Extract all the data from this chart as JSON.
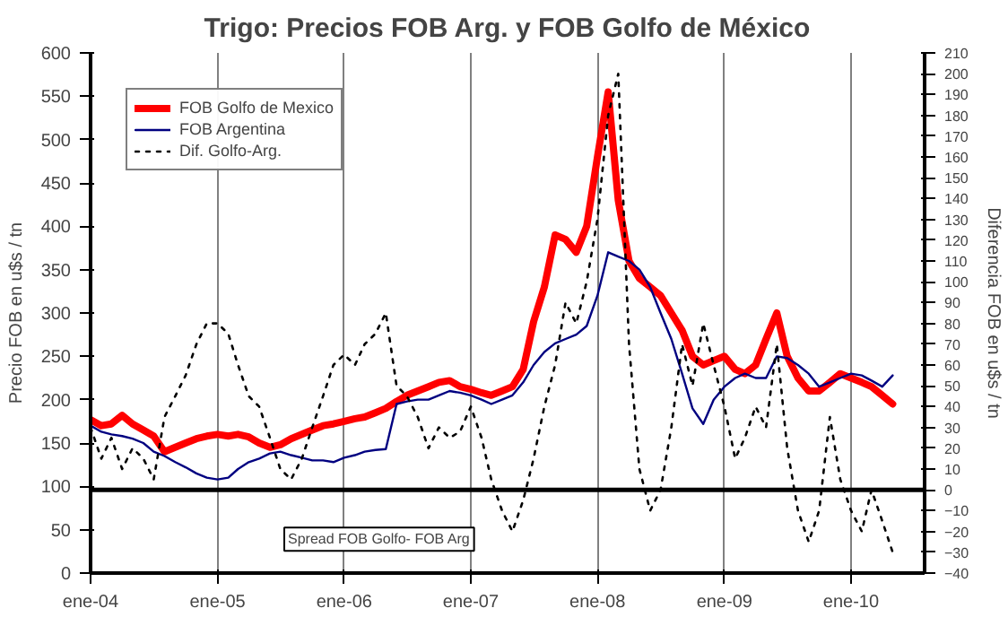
{
  "chart_data": {
    "type": "line",
    "title": "Trigo: Precios FOB Arg. y FOB Golfo de México",
    "ylabel": "Precio FOB en u$s / tn",
    "y2label": "Diferencia FOB en u$s / tn",
    "x": [
      "2004-01",
      "2004-02",
      "2004-03",
      "2004-04",
      "2004-05",
      "2004-06",
      "2004-07",
      "2004-08",
      "2004-09",
      "2004-10",
      "2004-11",
      "2004-12",
      "2005-01",
      "2005-02",
      "2005-03",
      "2005-04",
      "2005-05",
      "2005-06",
      "2005-07",
      "2005-08",
      "2005-09",
      "2005-10",
      "2005-11",
      "2005-12",
      "2006-01",
      "2006-02",
      "2006-03",
      "2006-04",
      "2006-05",
      "2006-06",
      "2006-07",
      "2006-08",
      "2006-09",
      "2006-10",
      "2006-11",
      "2006-12",
      "2007-01",
      "2007-02",
      "2007-03",
      "2007-04",
      "2007-05",
      "2007-06",
      "2007-07",
      "2007-08",
      "2007-09",
      "2007-10",
      "2007-11",
      "2007-12",
      "2008-01",
      "2008-02",
      "2008-03",
      "2008-04",
      "2008-05",
      "2008-06",
      "2008-07",
      "2008-08",
      "2008-09",
      "2008-10",
      "2008-11",
      "2008-12",
      "2009-01",
      "2009-02",
      "2009-03",
      "2009-04",
      "2009-05",
      "2009-06",
      "2009-07",
      "2009-08",
      "2009-09",
      "2009-10",
      "2009-11",
      "2009-12",
      "2010-01",
      "2010-02",
      "2010-03",
      "2010-04",
      "2010-05"
    ],
    "series": [
      {
        "name": "FOB Golfo de Mexico",
        "color": "#ff0000",
        "values": [
          177,
          170,
          172,
          182,
          172,
          165,
          158,
          140,
          145,
          150,
          155,
          158,
          160,
          158,
          160,
          157,
          150,
          145,
          148,
          155,
          160,
          165,
          170,
          172,
          175,
          178,
          180,
          185,
          190,
          198,
          205,
          210,
          215,
          220,
          222,
          215,
          212,
          208,
          205,
          210,
          215,
          235,
          290,
          330,
          390,
          385,
          370,
          400,
          480,
          555,
          430,
          360,
          340,
          330,
          320,
          300,
          280,
          250,
          240,
          245,
          250,
          235,
          230,
          240,
          270,
          300,
          250,
          225,
          210,
          210,
          220,
          230,
          225,
          220,
          215,
          205,
          195
        ]
      },
      {
        "name": "FOB Argentina",
        "color": "#000080",
        "values": [
          170,
          163,
          160,
          158,
          155,
          150,
          140,
          135,
          128,
          122,
          115,
          110,
          108,
          110,
          120,
          128,
          132,
          138,
          140,
          136,
          133,
          130,
          130,
          128,
          133,
          136,
          140,
          142,
          143,
          195,
          198,
          200,
          200,
          205,
          210,
          208,
          205,
          200,
          195,
          200,
          205,
          220,
          240,
          255,
          265,
          270,
          275,
          285,
          320,
          370,
          365,
          360,
          350,
          330,
          300,
          270,
          230,
          190,
          172,
          200,
          215,
          225,
          230,
          225,
          225,
          250,
          248,
          240,
          230,
          215,
          220,
          225,
          230,
          228,
          222,
          215,
          228
        ]
      },
      {
        "name": "Dif. Golfo-Arg.",
        "color": "#000000",
        "axis": "y2",
        "line_style": "dotted",
        "values": [
          30,
          15,
          25,
          10,
          20,
          15,
          5,
          35,
          45,
          55,
          70,
          80,
          80,
          75,
          60,
          45,
          40,
          25,
          10,
          5,
          15,
          30,
          45,
          60,
          65,
          60,
          70,
          75,
          85,
          50,
          45,
          35,
          20,
          30,
          25,
          28,
          40,
          25,
          5,
          -10,
          -20,
          -5,
          15,
          40,
          60,
          90,
          80,
          100,
          130,
          180,
          200,
          70,
          10,
          -10,
          0,
          30,
          70,
          50,
          80,
          60,
          40,
          15,
          25,
          40,
          30,
          70,
          20,
          -10,
          -25,
          -10,
          35,
          5,
          -10,
          -20,
          0,
          -15,
          -30
        ]
      }
    ],
    "xlim": [
      "2004-01",
      "2010-08"
    ],
    "xticks": [
      {
        "value": "2004-01",
        "label": "ene-04"
      },
      {
        "value": "2005-01",
        "label": "ene-05"
      },
      {
        "value": "2006-01",
        "label": "ene-06"
      },
      {
        "value": "2007-01",
        "label": "ene-07"
      },
      {
        "value": "2008-01",
        "label": "ene-08"
      },
      {
        "value": "2009-01",
        "label": "ene-09"
      },
      {
        "value": "2010-01",
        "label": "ene-10"
      }
    ],
    "ylim": [
      0,
      600
    ],
    "yticks": [
      0,
      50,
      100,
      150,
      200,
      250,
      300,
      350,
      400,
      450,
      500,
      550,
      600
    ],
    "y2lim": [
      -40,
      210
    ],
    "y2ticks": [
      -40,
      -30,
      -20,
      -10,
      0,
      10,
      20,
      30,
      40,
      50,
      60,
      70,
      80,
      90,
      100,
      110,
      120,
      130,
      140,
      150,
      160,
      170,
      180,
      190,
      200,
      210
    ],
    "ref_lines": [
      {
        "axis": "y2",
        "value": 0,
        "label": "Spread FOB Golfo- FOB Arg",
        "color": "#000000"
      }
    ],
    "grid": "x",
    "legend": "top left",
    "marker": "none"
  }
}
